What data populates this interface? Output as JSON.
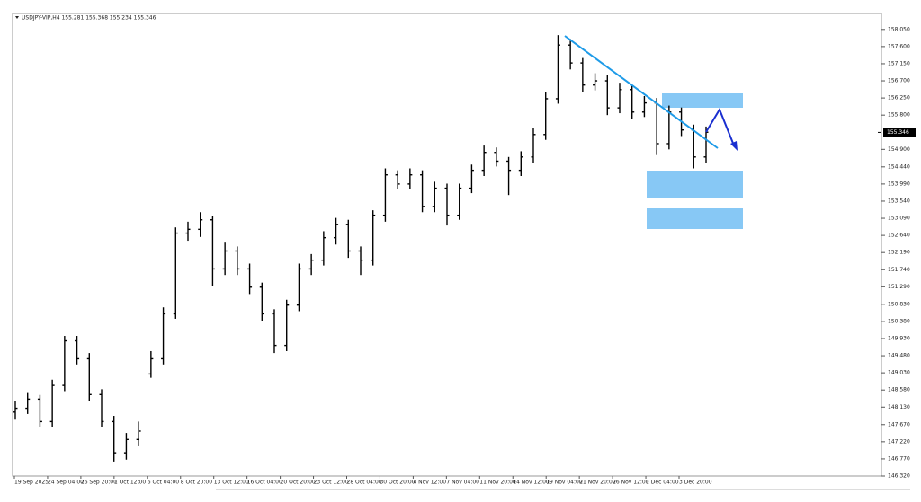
{
  "chart_data": {
    "type": "ohlc",
    "title": "USDJPY-VIP,H4  155.281 155.368 155.234 155.346",
    "color": "#000000",
    "ylim": [
      146.32,
      158.47
    ],
    "yticks": [
      {
        "value": 158.05,
        "label": "158.050"
      },
      {
        "value": 157.6,
        "label": "157.600"
      },
      {
        "value": 157.15,
        "label": "157.150"
      },
      {
        "value": 156.7,
        "label": "156.700"
      },
      {
        "value": 156.25,
        "label": "156.250"
      },
      {
        "value": 155.8,
        "label": "155.800"
      },
      {
        "value": 154.9,
        "label": "154.900"
      },
      {
        "value": 154.44,
        "label": "154.440"
      },
      {
        "value": 153.99,
        "label": "153.990"
      },
      {
        "value": 153.54,
        "label": "153.540"
      },
      {
        "value": 153.09,
        "label": "153.090"
      },
      {
        "value": 152.64,
        "label": "152.640"
      },
      {
        "value": 152.19,
        "label": "152.190"
      },
      {
        "value": 151.74,
        "label": "151.740"
      },
      {
        "value": 151.29,
        "label": "151.290"
      },
      {
        "value": 150.83,
        "label": "150.830"
      },
      {
        "value": 150.38,
        "label": "150.380"
      },
      {
        "value": 149.93,
        "label": "149.930"
      },
      {
        "value": 149.48,
        "label": "149.480"
      },
      {
        "value": 149.03,
        "label": "149.030"
      },
      {
        "value": 148.58,
        "label": "148.580"
      },
      {
        "value": 148.13,
        "label": "148.130"
      },
      {
        "value": 147.67,
        "label": "147.670"
      },
      {
        "value": 147.22,
        "label": "147.220"
      },
      {
        "value": 146.77,
        "label": "146.770"
      },
      {
        "value": 146.32,
        "label": "146.320"
      }
    ],
    "last_price": 155.346,
    "x_labels": [
      "19 Sep 2025",
      "24 Sep 04:00",
      "26 Sep 20:00",
      "1 Oct 12:00",
      "6 Oct 04:00",
      "8 Oct 20:00",
      "13 Oct 12:00",
      "16 Oct 04:00",
      "20 Oct 20:00",
      "23 Oct 12:00",
      "28 Oct 04:00",
      "30 Oct 20:00",
      "4 Nov 12:00",
      "7 Nov 04:00",
      "11 Nov 20:00",
      "14 Nov 12:00",
      "19 Nov 04:00",
      "21 Nov 20:00",
      "26 Nov 12:00",
      "1 Dec 04:00",
      "3 Dec 20:00"
    ],
    "ohlc": [
      [
        148.0,
        148.3,
        147.8,
        148.1
      ],
      [
        148.1,
        148.5,
        147.95,
        148.34
      ],
      [
        148.34,
        148.45,
        147.6,
        147.75
      ],
      [
        147.75,
        148.85,
        147.6,
        148.7
      ],
      [
        148.7,
        150.0,
        148.55,
        149.87
      ],
      [
        149.87,
        150.0,
        149.25,
        149.4
      ],
      [
        149.4,
        149.55,
        148.3,
        148.46
      ],
      [
        148.46,
        148.6,
        147.6,
        147.75
      ],
      [
        147.75,
        147.9,
        146.7,
        146.93
      ],
      [
        146.93,
        147.45,
        146.75,
        147.28
      ],
      [
        147.28,
        147.75,
        147.1,
        147.5
      ],
      [
        149.0,
        149.6,
        148.9,
        149.4
      ],
      [
        149.4,
        150.75,
        149.25,
        150.58
      ],
      [
        150.58,
        152.85,
        150.45,
        152.7
      ],
      [
        152.7,
        153.0,
        152.5,
        152.8
      ],
      [
        152.8,
        153.25,
        152.6,
        153.05
      ],
      [
        153.05,
        153.15,
        151.3,
        151.76
      ],
      [
        151.76,
        152.45,
        151.6,
        152.23
      ],
      [
        152.23,
        152.35,
        151.6,
        151.76
      ],
      [
        151.76,
        151.9,
        151.1,
        151.28
      ],
      [
        151.28,
        151.4,
        150.4,
        150.58
      ],
      [
        150.58,
        150.7,
        149.55,
        149.75
      ],
      [
        149.75,
        150.95,
        149.6,
        150.81
      ],
      [
        150.81,
        151.9,
        150.65,
        151.76
      ],
      [
        151.76,
        152.15,
        151.6,
        151.99
      ],
      [
        151.99,
        152.75,
        151.85,
        152.58
      ],
      [
        152.58,
        153.1,
        152.4,
        152.93
      ],
      [
        152.93,
        153.05,
        152.05,
        152.23
      ],
      [
        152.23,
        152.35,
        151.6,
        151.99
      ],
      [
        151.99,
        153.3,
        151.85,
        153.17
      ],
      [
        153.17,
        154.4,
        153.0,
        154.23
      ],
      [
        154.23,
        154.35,
        153.85,
        153.99
      ],
      [
        153.99,
        154.4,
        153.85,
        154.23
      ],
      [
        154.23,
        154.35,
        153.25,
        153.4
      ],
      [
        153.4,
        154.05,
        153.25,
        153.88
      ],
      [
        153.88,
        154.0,
        152.9,
        153.17
      ],
      [
        153.17,
        154.0,
        153.05,
        153.88
      ],
      [
        153.88,
        154.5,
        153.75,
        154.35
      ],
      [
        154.35,
        155.0,
        154.2,
        154.82
      ],
      [
        154.82,
        154.95,
        154.45,
        154.59
      ],
      [
        154.59,
        154.7,
        153.7,
        154.35
      ],
      [
        154.35,
        154.85,
        154.2,
        154.7
      ],
      [
        154.7,
        155.45,
        154.55,
        155.29
      ],
      [
        155.29,
        156.4,
        155.15,
        156.23
      ],
      [
        156.23,
        157.9,
        156.1,
        157.64
      ],
      [
        157.64,
        157.8,
        157.0,
        157.17
      ],
      [
        157.17,
        157.3,
        156.4,
        156.59
      ],
      [
        156.59,
        156.9,
        156.45,
        156.7
      ],
      [
        156.7,
        156.85,
        155.8,
        155.99
      ],
      [
        155.99,
        156.65,
        155.85,
        156.47
      ],
      [
        156.47,
        156.6,
        155.7,
        155.88
      ],
      [
        155.88,
        156.3,
        155.75,
        156.12
      ],
      [
        156.12,
        156.25,
        154.75,
        155.05
      ],
      [
        155.05,
        156.05,
        154.9,
        155.88
      ],
      [
        155.88,
        156.0,
        155.25,
        155.41
      ],
      [
        155.41,
        155.55,
        154.4,
        154.7
      ],
      [
        154.7,
        155.5,
        154.55,
        155.35
      ]
    ]
  }
}
